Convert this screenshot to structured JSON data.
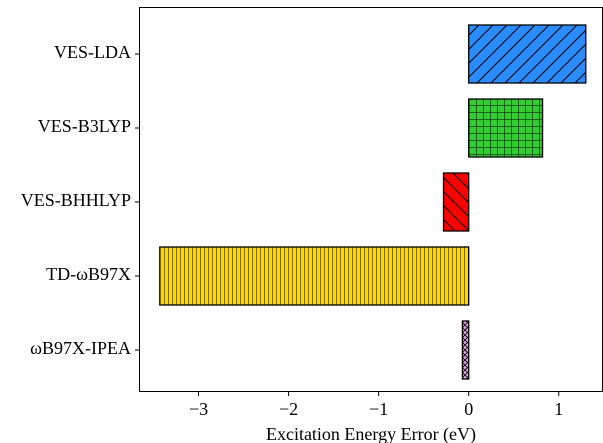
{
  "chart_data": {
    "type": "bar",
    "orientation": "horizontal",
    "categories": [
      "VES-LDA",
      "VES-B3LYP",
      "VES-BHHLYP",
      "TD-ωB97X",
      "ωB97X-IPEA"
    ],
    "values": [
      1.3,
      0.82,
      -0.28,
      -3.43,
      -0.07
    ],
    "colors": [
      "#2b8cff",
      "#33cc33",
      "#ff0000",
      "#ffd700",
      "#e7a6e7"
    ],
    "hatches": [
      "diagonal",
      "grid",
      "backdiagonal",
      "vertical",
      "crosshatch"
    ],
    "xlabel": "Excitation Energy Error (eV)",
    "ylabel": "",
    "xlim": [
      -3.65,
      1.48
    ],
    "xticks": [
      -3,
      -2,
      -1,
      0,
      1
    ],
    "xtick_labels": [
      "−3",
      "−2",
      "−1",
      "0",
      "1"
    ],
    "grid": false,
    "legend": "none"
  }
}
